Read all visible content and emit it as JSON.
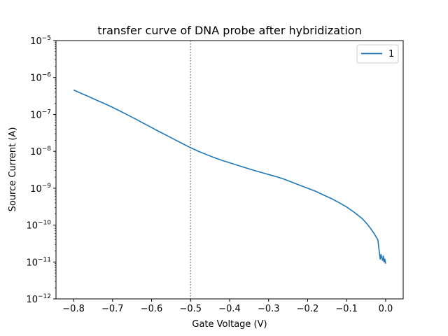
{
  "chart_data": {
    "type": "line",
    "title": "transfer curve of DNA probe after hybridization",
    "xlabel": "Gate Voltage (V)",
    "ylabel": "Source Current (A)",
    "xlim": [
      -0.845,
      0.045
    ],
    "ylim": [
      1e-12,
      1e-05
    ],
    "yscale": "log",
    "grid": false,
    "legend_position": "top-right",
    "xticks": [
      {
        "value": -0.8,
        "label": "−0.8"
      },
      {
        "value": -0.7,
        "label": "−0.7"
      },
      {
        "value": -0.6,
        "label": "−0.6"
      },
      {
        "value": -0.5,
        "label": "−0.5"
      },
      {
        "value": -0.4,
        "label": "−0.4"
      },
      {
        "value": -0.3,
        "label": "−0.3"
      },
      {
        "value": -0.2,
        "label": "−0.2"
      },
      {
        "value": -0.1,
        "label": "−0.1"
      },
      {
        "value": 0.0,
        "label": "0.0"
      }
    ],
    "yticks": [
      {
        "value": 1e-12,
        "base": "10",
        "exp": "−12"
      },
      {
        "value": 1e-11,
        "base": "10",
        "exp": "−11"
      },
      {
        "value": 1e-10,
        "base": "10",
        "exp": "−10"
      },
      {
        "value": 1e-09,
        "base": "10",
        "exp": "−9"
      },
      {
        "value": 1e-08,
        "base": "10",
        "exp": "−8"
      },
      {
        "value": 1e-07,
        "base": "10",
        "exp": "−7"
      },
      {
        "value": 1e-06,
        "base": "10",
        "exp": "−6"
      },
      {
        "value": 1e-05,
        "base": "10",
        "exp": "−5"
      }
    ],
    "vline": {
      "x": -0.5,
      "color": "#808080",
      "style": "dotted"
    },
    "series": [
      {
        "name": "1",
        "color": "#1f77b4",
        "x": [
          -0.8,
          -0.78,
          -0.76,
          -0.74,
          -0.72,
          -0.7,
          -0.68,
          -0.66,
          -0.64,
          -0.62,
          -0.6,
          -0.58,
          -0.56,
          -0.54,
          -0.52,
          -0.5,
          -0.48,
          -0.46,
          -0.44,
          -0.42,
          -0.4,
          -0.38,
          -0.36,
          -0.34,
          -0.32,
          -0.3,
          -0.28,
          -0.26,
          -0.24,
          -0.22,
          -0.2,
          -0.18,
          -0.16,
          -0.14,
          -0.12,
          -0.1,
          -0.08,
          -0.06,
          -0.05,
          -0.04,
          -0.03,
          -0.02,
          -0.014,
          -0.012,
          -0.008,
          -0.006,
          -0.004,
          -0.002,
          0.0
        ],
        "y": [
          4.6e-07,
          3.7e-07,
          3e-07,
          2.4e-07,
          1.95e-07,
          1.55e-07,
          1.22e-07,
          9.5e-08,
          7.4e-08,
          5.7e-08,
          4.4e-08,
          3.4e-08,
          2.65e-08,
          2.05e-08,
          1.6e-08,
          1.25e-08,
          1e-08,
          8.2e-09,
          6.8e-09,
          5.7e-09,
          4.9e-09,
          4.2e-09,
          3.6e-09,
          3.1e-09,
          2.7e-09,
          2.35e-09,
          2.05e-09,
          1.75e-09,
          1.45e-09,
          1.2e-09,
          1e-09,
          8.3e-10,
          6.6e-10,
          5.3e-10,
          4.1e-10,
          3.1e-10,
          2.2e-10,
          1.5e-10,
          1.15e-10,
          8.5e-11,
          6e-11,
          4e-11,
          1.2e-11,
          1.6e-11,
          1.1e-11,
          1.45e-11,
          1e-11,
          1.2e-11,
          9e-12
        ]
      }
    ]
  }
}
